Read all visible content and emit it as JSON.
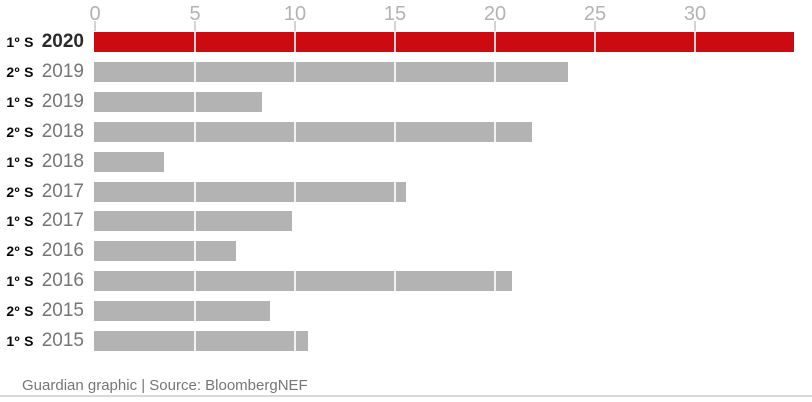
{
  "chart_data": {
    "type": "bar",
    "orientation": "horizontal",
    "title": "",
    "xlabel": "",
    "ylabel": "",
    "axis": {
      "position": "top",
      "ticks": [
        0,
        5,
        10,
        15,
        20,
        25,
        30
      ],
      "xlim": [
        0,
        35
      ],
      "grid": true
    },
    "categories": [
      "1º S 2020",
      "2º S 2019",
      "1º S 2019",
      "2º S 2018",
      "1º S 2018",
      "2º S 2017",
      "1º S 2017",
      "2º S 2016",
      "1º S 2016",
      "2º S 2015",
      "1º S 2015"
    ],
    "values": [
      35,
      23.7,
      8.4,
      21.9,
      3.5,
      15.6,
      9.9,
      7.1,
      20.9,
      8.8,
      10.7
    ],
    "rows": [
      {
        "semester": "1º S",
        "year": "2020",
        "value": 35,
        "highlight": true
      },
      {
        "semester": "2º S",
        "year": "2019",
        "value": 23.7,
        "highlight": false
      },
      {
        "semester": "1º S",
        "year": "2019",
        "value": 8.4,
        "highlight": false
      },
      {
        "semester": "2º S",
        "year": "2018",
        "value": 21.9,
        "highlight": false
      },
      {
        "semester": "1º S",
        "year": "2018",
        "value": 3.5,
        "highlight": false
      },
      {
        "semester": "2º S",
        "year": "2017",
        "value": 15.6,
        "highlight": false
      },
      {
        "semester": "1º S",
        "year": "2017",
        "value": 9.9,
        "highlight": false
      },
      {
        "semester": "2º S",
        "year": "2016",
        "value": 7.1,
        "highlight": false
      },
      {
        "semester": "1º S",
        "year": "2016",
        "value": 20.9,
        "highlight": false
      },
      {
        "semester": "2º S",
        "year": "2015",
        "value": 8.8,
        "highlight": false
      },
      {
        "semester": "1º S",
        "year": "2015",
        "value": 10.7,
        "highlight": false
      }
    ],
    "colors": {
      "highlight_bar": "#cc0a11",
      "bar": "#b3b3b3",
      "axis_text": "#b3b3b3",
      "year_text": "#767676",
      "semester_text": "#0a0a0a"
    },
    "legend": null
  },
  "footer": {
    "text": "Guardian graphic | Source: BloombergNEF"
  }
}
